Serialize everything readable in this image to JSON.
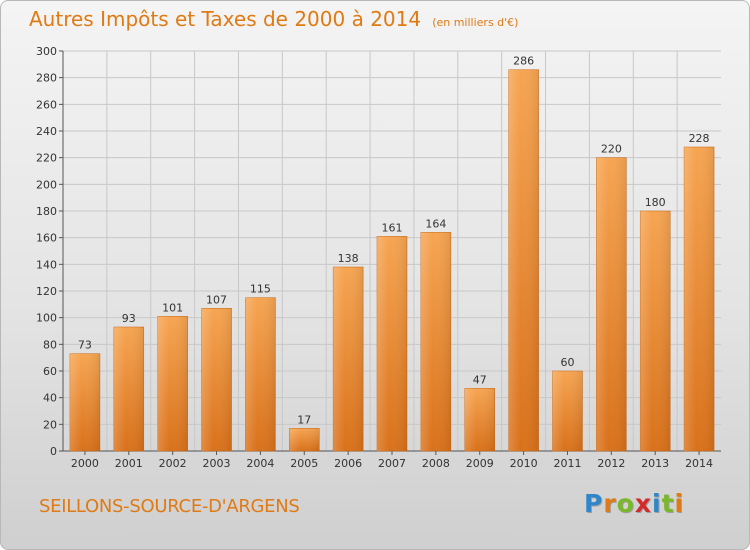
{
  "title": "Autres Impôts et Taxes de 2000 à 2014",
  "title_unit": "(en milliers d'€)",
  "commune": "SEILLONS-SOURCE-D'ARGENS",
  "logo": {
    "text": "Proxiti",
    "letters": [
      "P",
      "r",
      "o",
      "x",
      "i",
      "t",
      "i"
    ],
    "colors": [
      "#2f86c8",
      "#e07a14",
      "#7ab829",
      "#d42a2a",
      "#2f86c8",
      "#7ab829",
      "#e07a14"
    ]
  },
  "colors": {
    "bar_top": "#f6a552",
    "bar_bottom": "#d9711a",
    "title": "#e07a14",
    "grid": "#c8c8c8"
  },
  "chart_data": {
    "type": "bar",
    "title": "Autres Impôts et Taxes de 2000 à 2014",
    "xlabel": "",
    "ylabel": "",
    "ylim": [
      0,
      300
    ],
    "yticks": [
      0,
      20,
      40,
      60,
      80,
      100,
      120,
      140,
      160,
      180,
      200,
      220,
      240,
      260,
      280,
      300
    ],
    "grid": true,
    "categories": [
      "2000",
      "2001",
      "2002",
      "2003",
      "2004",
      "2005",
      "2006",
      "2007",
      "2008",
      "2009",
      "2010",
      "2011",
      "2012",
      "2013",
      "2014"
    ],
    "values": [
      73,
      93,
      101,
      107,
      115,
      17,
      138,
      161,
      164,
      47,
      286,
      60,
      220,
      180,
      228
    ]
  }
}
